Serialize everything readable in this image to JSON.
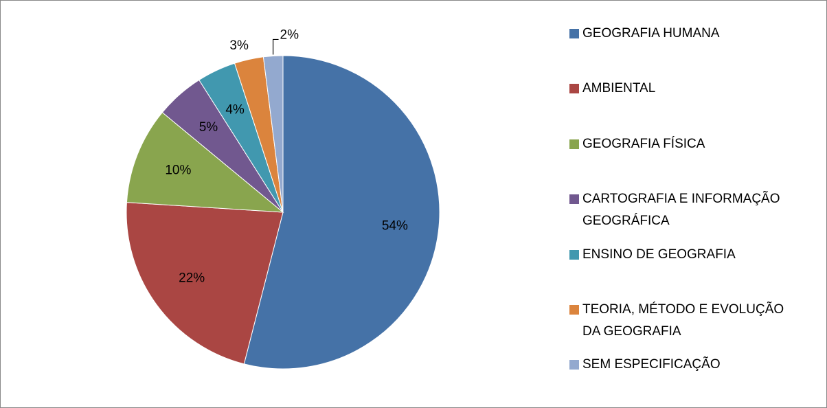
{
  "chart_data": {
    "type": "pie",
    "categories": [
      "GEOGRAFIA HUMANA",
      "AMBIENTAL",
      "GEOGRAFIA FÍSICA",
      "CARTOGRAFIA E INFORMAÇÃO GEOGRÁFICA",
      "ENSINO DE GEOGRAFIA",
      "TEORIA, MÉTODO E EVOLUÇÃO DA GEOGRAFIA",
      "SEM ESPECIFICAÇÃO"
    ],
    "values": [
      54,
      22,
      10,
      5,
      4,
      3,
      2
    ],
    "value_labels": [
      "54%",
      "22%",
      "10%",
      "5%",
      "4%",
      "3%",
      "2%"
    ],
    "colors": [
      "#4572a7",
      "#aa4643",
      "#89a54e",
      "#71588f",
      "#4198af",
      "#db843d",
      "#93a9cf"
    ],
    "legend": "right"
  }
}
